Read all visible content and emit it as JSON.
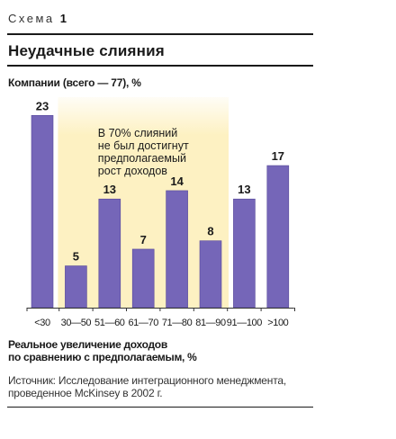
{
  "header": {
    "scheme_label": "Схема",
    "scheme_number": "1",
    "title": "Неудачные слияния"
  },
  "chart_data": {
    "type": "bar",
    "title": "Неудачные слияния",
    "ylabel": "Компании (всего — 77), %",
    "xlabel": "Реальное увеличение доходов по сравнению с предполагаемым, %",
    "xlabel_lines": [
      "Реальное увеличение доходов",
      "по сравнению с предполагаемым, %"
    ],
    "categories": [
      "<30",
      "30—50",
      "51—60",
      "61—70",
      "71—80",
      "81—90",
      "91—100",
      ">100"
    ],
    "values": [
      23,
      5,
      13,
      7,
      14,
      8,
      13,
      17
    ],
    "ylim": [
      0,
      24
    ],
    "grid": false,
    "highlight": {
      "from_category": "30—50",
      "to_category": "81—90",
      "color": "#fdf1c2"
    },
    "annotation": [
      "В 70% слияний",
      "не был достигнут",
      "предполагаемый",
      "рост доходов"
    ],
    "colors": {
      "bar": "#7566b8",
      "bar_edge": "#57499a",
      "label": "#1a1a1a",
      "highlight": "#fdf1c2"
    }
  },
  "footer": {
    "source_lines": [
      "Источник: Исследование интеграционного менеджмента,",
      "проведенное McKinsey в 2002 г."
    ]
  }
}
